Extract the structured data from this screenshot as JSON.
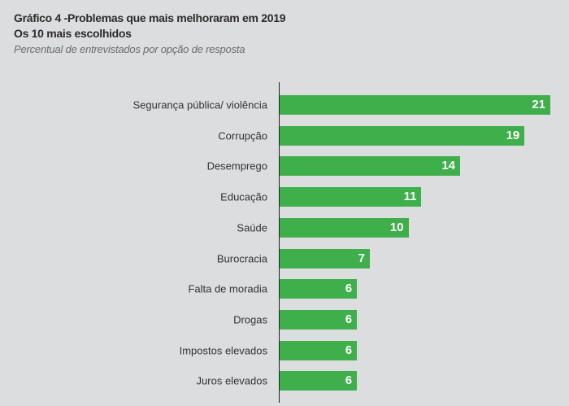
{
  "chart_data": {
    "type": "bar",
    "orientation": "horizontal",
    "title": "Gráfico 4 -Problemas que mais melhoraram em 2019",
    "title_line2": "Os 10 mais escolhidos",
    "subtitle": "Percentual de entrevistados por opção de resposta",
    "categories": [
      "Segurança pública/ violência",
      "Corrupção",
      "Desemprego",
      "Educação",
      "Saúde",
      "Burocracia",
      "Falta de moradia",
      "Drogas",
      "Impostos elevados",
      "Juros elevados"
    ],
    "values": [
      21,
      19,
      14,
      11,
      10,
      7,
      6,
      6,
      6,
      6
    ],
    "xlim": [
      0,
      21
    ],
    "grid": false,
    "bar_color": "#3faf4b"
  }
}
